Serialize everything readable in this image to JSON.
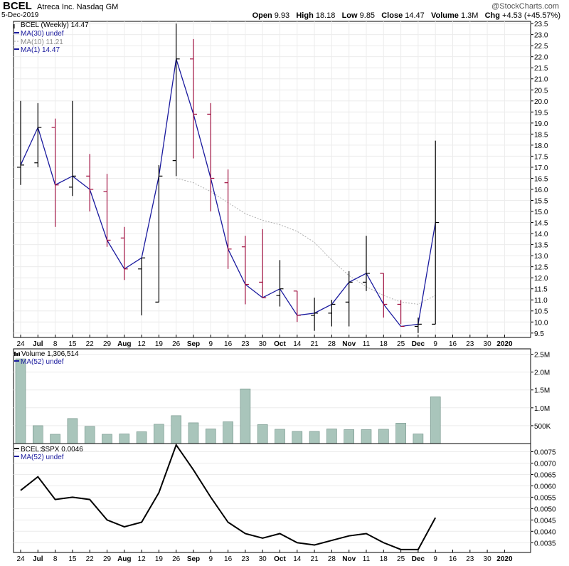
{
  "header": {
    "ticker": "BCEL",
    "company": "Atreca Inc. Nasdaq GM",
    "date": "5-Dec-2019",
    "brand": "@StockCharts.com",
    "open_label": "Open",
    "open": "9.93",
    "high_label": "High",
    "high": "18.18",
    "low_label": "Low",
    "low": "9.85",
    "close_label": "Close",
    "close": "14.47",
    "volume_label": "Volume",
    "volume": "1.3M",
    "chg_label": "Chg",
    "chg": "+4.53 (+45.57%)"
  },
  "legend": {
    "price": "BCEL (Weekly) 14.47",
    "ma30": "MA(30) undef",
    "ma10": "MA(10) 11.21",
    "ma1": "MA(1) 14.47",
    "volume": "Volume 1,306,514",
    "vol_ma": "MA(52) undef",
    "ratio": "BCEL:$SPX 0.0046",
    "ratio_ma": "MA(52) undef"
  },
  "x_axis": {
    "labels": [
      "24",
      "Jul",
      "8",
      "15",
      "22",
      "29",
      "Aug",
      "12",
      "19",
      "26",
      "Sep",
      "9",
      "16",
      "23",
      "30",
      "Oct",
      "14",
      "21",
      "28",
      "Nov",
      "11",
      "18",
      "25",
      "Dec",
      "9",
      "16",
      "23",
      "30",
      "2020"
    ],
    "bold": [
      "Jul",
      "Aug",
      "Sep",
      "Oct",
      "Nov",
      "Dec",
      "2020"
    ]
  },
  "colors": {
    "up": "#000000",
    "down": "#a01040",
    "ma1": "#1a1a9e",
    "ma10": "#b0b0b0",
    "volume_fill": "#a9c5bb",
    "volume_stroke": "#6f8f85",
    "ratio": "#000000"
  },
  "chart_data": [
    {
      "type": "ohlc",
      "title": "BCEL (Weekly)",
      "ylim": [
        9.3,
        23.6
      ],
      "y_ticks": [
        9.5,
        10.0,
        10.5,
        11.0,
        11.5,
        12.0,
        12.5,
        13.0,
        13.5,
        14.0,
        14.5,
        15.0,
        15.5,
        16.0,
        16.5,
        17.0,
        17.5,
        18.0,
        18.5,
        19.0,
        19.5,
        20.0,
        20.5,
        21.0,
        21.5,
        22.0,
        22.5,
        23.0,
        23.5
      ],
      "bars": [
        {
          "open": 17.0,
          "high": 20.0,
          "low": 16.2,
          "close": 17.1
        },
        {
          "open": 17.2,
          "high": 19.9,
          "low": 17.0,
          "close": 18.8
        },
        {
          "open": 18.8,
          "high": 19.2,
          "low": 14.3,
          "close": 16.2
        },
        {
          "open": 16.1,
          "high": 20.0,
          "low": 15.7,
          "close": 16.6
        },
        {
          "open": 16.6,
          "high": 17.6,
          "low": 15.0,
          "close": 16.0
        },
        {
          "open": 15.9,
          "high": 16.7,
          "low": 13.4,
          "close": 13.7
        },
        {
          "open": 13.8,
          "high": 14.3,
          "low": 11.9,
          "close": 12.4
        },
        {
          "open": 12.4,
          "high": 12.9,
          "low": 10.3,
          "close": 12.9
        },
        {
          "open": 10.9,
          "high": 17.1,
          "low": 10.9,
          "close": 16.6
        },
        {
          "open": 17.3,
          "high": 23.5,
          "low": 16.6,
          "close": 21.9
        },
        {
          "open": 21.9,
          "high": 22.8,
          "low": 17.4,
          "close": 19.4
        },
        {
          "open": 19.4,
          "high": 19.9,
          "low": 15.0,
          "close": 16.5
        },
        {
          "open": 16.3,
          "high": 16.9,
          "low": 12.4,
          "close": 13.3
        },
        {
          "open": 13.4,
          "high": 13.9,
          "low": 10.8,
          "close": 11.7
        },
        {
          "open": 11.8,
          "high": 14.2,
          "low": 11.1,
          "close": 11.1
        },
        {
          "open": 11.2,
          "high": 12.8,
          "low": 10.7,
          "close": 11.5
        },
        {
          "open": 11.4,
          "high": 11.4,
          "low": 10.0,
          "close": 10.3
        },
        {
          "open": 10.3,
          "high": 11.1,
          "low": 9.6,
          "close": 10.4
        },
        {
          "open": 10.4,
          "high": 11.0,
          "low": 9.8,
          "close": 10.8
        },
        {
          "open": 10.9,
          "high": 12.3,
          "low": 9.8,
          "close": 11.8
        },
        {
          "open": 11.8,
          "high": 13.9,
          "low": 11.4,
          "close": 12.2
        },
        {
          "open": 12.2,
          "high": 12.2,
          "low": 10.2,
          "close": 10.8
        },
        {
          "open": 10.8,
          "high": 11.0,
          "low": 9.9,
          "close": 9.8
        },
        {
          "open": 9.8,
          "high": 10.2,
          "low": 9.5,
          "close": 9.9
        },
        {
          "open": 9.9,
          "high": 18.2,
          "low": 9.9,
          "close": 14.5
        }
      ],
      "ma10": [
        16.5,
        16.3,
        15.9,
        15.4,
        14.9,
        14.6,
        14.4,
        14.1,
        13.6,
        12.8,
        12.1,
        11.6,
        11.2,
        10.9,
        10.8,
        11.2
      ]
    },
    {
      "type": "bar",
      "title": "Volume",
      "ylim": [
        0,
        2.65
      ],
      "y_ticks": [
        {
          "v": 0.5,
          "label": "500K"
        },
        {
          "v": 1.0,
          "label": "1.0M"
        },
        {
          "v": 1.5,
          "label": "1.5M"
        },
        {
          "v": 2.0,
          "label": "2.0M"
        },
        {
          "v": 2.5,
          "label": "2.5M"
        }
      ],
      "values": [
        2.37,
        0.5,
        0.26,
        0.7,
        0.48,
        0.26,
        0.27,
        0.33,
        0.54,
        0.78,
        0.58,
        0.41,
        0.61,
        1.53,
        0.53,
        0.4,
        0.34,
        0.34,
        0.41,
        0.39,
        0.39,
        0.4,
        0.57,
        0.27,
        1.31
      ],
      "unit": "millions"
    },
    {
      "type": "line",
      "title": "BCEL:$SPX",
      "ylim": [
        0.00307,
        0.00786
      ],
      "y_ticks": [
        0.0035,
        0.004,
        0.0045,
        0.005,
        0.0055,
        0.006,
        0.0065,
        0.007,
        0.0075
      ],
      "values": [
        0.0058,
        0.0064,
        0.0054,
        0.0055,
        0.0054,
        0.0045,
        0.0042,
        0.0044,
        0.0057,
        0.0078,
        0.0067,
        0.0055,
        0.0044,
        0.0039,
        0.0037,
        0.0039,
        0.0035,
        0.0034,
        0.0036,
        0.0038,
        0.0039,
        0.0035,
        0.0032,
        0.0032,
        0.0046
      ]
    }
  ]
}
